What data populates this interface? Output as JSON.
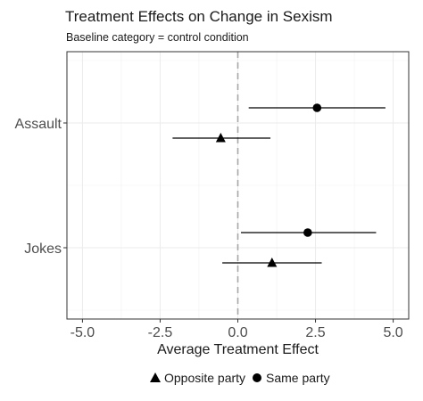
{
  "chart_data": {
    "type": "scatter",
    "title": "Treatment Effects on Change in Sexism",
    "subtitle": "Baseline category = control condition",
    "xlabel": "Average Treatment Effect",
    "ylabel": "",
    "xlim": [
      -5.5,
      5.5
    ],
    "x_ticks": [
      -5.0,
      -2.5,
      0.0,
      2.5,
      5.0
    ],
    "x_tick_labels": [
      "-5.0",
      "-2.5",
      "0.0",
      "2.5",
      "5.0"
    ],
    "categories": [
      "Assault",
      "Jokes"
    ],
    "reference_line": 0.0,
    "grid": true,
    "legend_position": "bottom",
    "series": [
      {
        "name": "Opposite party",
        "marker": "triangle",
        "points": [
          {
            "category": "Assault",
            "estimate": -0.55,
            "lower": -2.1,
            "upper": 1.05
          },
          {
            "category": "Jokes",
            "estimate": 1.1,
            "lower": -0.5,
            "upper": 2.7
          }
        ]
      },
      {
        "name": "Same party",
        "marker": "circle",
        "points": [
          {
            "category": "Assault",
            "estimate": 2.55,
            "lower": 0.35,
            "upper": 4.75
          },
          {
            "category": "Jokes",
            "estimate": 2.25,
            "lower": 0.1,
            "upper": 4.45
          }
        ]
      }
    ]
  }
}
